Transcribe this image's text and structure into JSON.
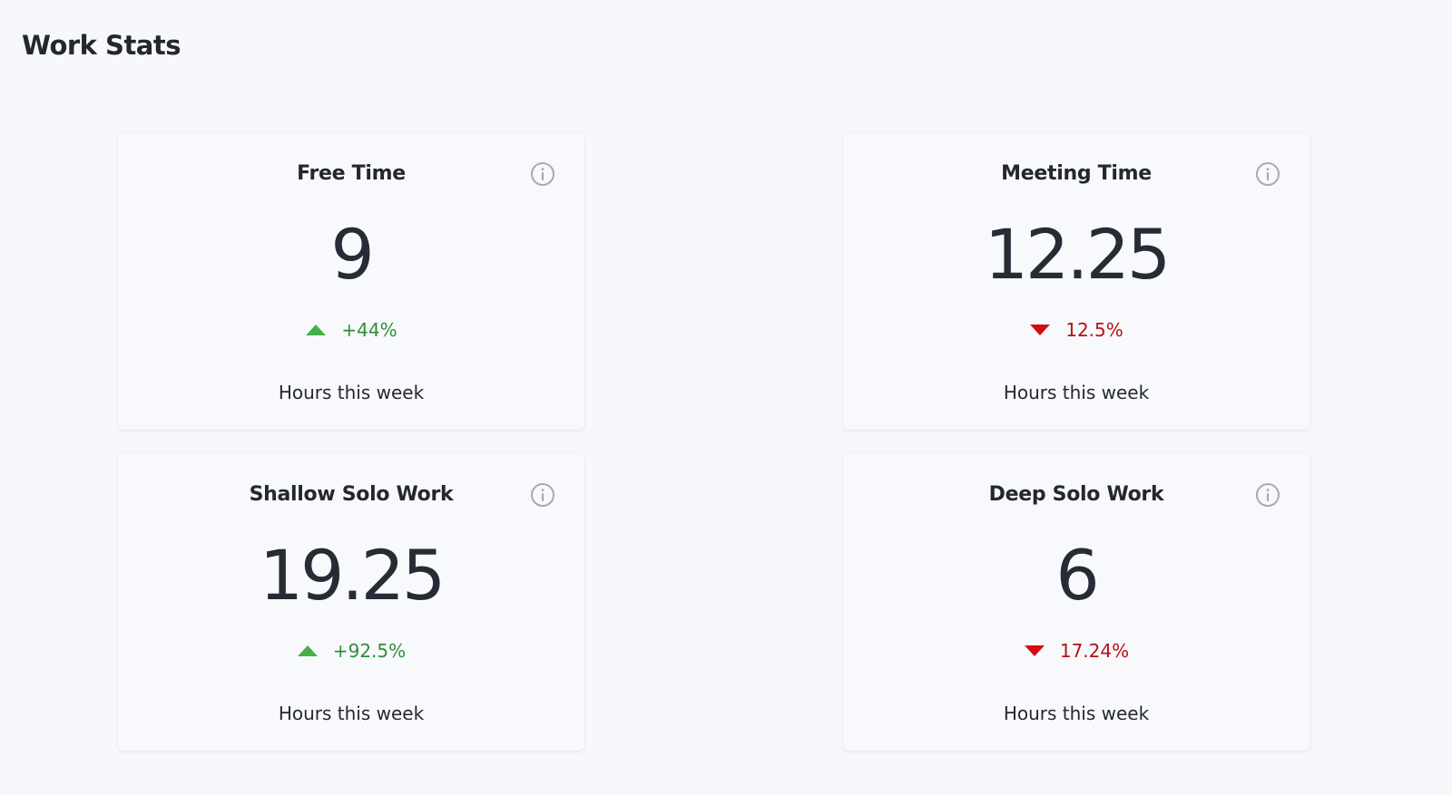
{
  "page": {
    "title": "Work Stats"
  },
  "colors": {
    "background": "#f7f8fb",
    "card": "#f8f9fc",
    "up": "#2f8f35",
    "up_icon": "#45b04a",
    "down": "#b80f12",
    "down_icon": "#d40c12",
    "info_icon": "#a8aab0"
  },
  "cards": [
    {
      "title": "Free Time",
      "value": "9",
      "trend": "+44%",
      "direction": "up",
      "caption": "Hours this week",
      "info_icon": "info-circle-icon"
    },
    {
      "title": "Meeting Time",
      "value": "12.25",
      "trend": "12.5%",
      "direction": "down",
      "caption": "Hours this week",
      "info_icon": "info-circle-icon"
    },
    {
      "title": "Shallow Solo Work",
      "value": "19.25",
      "trend": "+92.5%",
      "direction": "up",
      "caption": "Hours this week",
      "info_icon": "info-circle-icon"
    },
    {
      "title": "Deep Solo Work",
      "value": "6",
      "trend": "17.24%",
      "direction": "down",
      "caption": "Hours this week",
      "info_icon": "info-circle-icon"
    }
  ]
}
